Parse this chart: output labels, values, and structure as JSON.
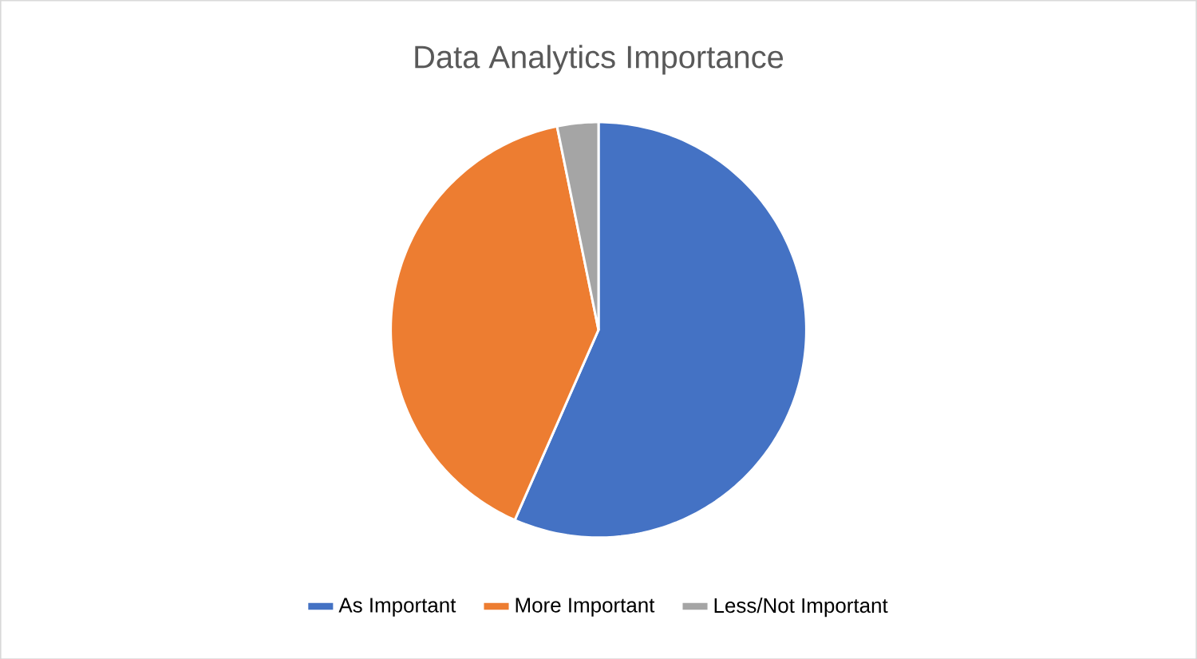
{
  "chart_data": {
    "type": "pie",
    "title": "Data Analytics Importance",
    "categories": [
      "As Important",
      "More Important",
      "Less/Not Important"
    ],
    "values": [
      56.6,
      40.2,
      3.2
    ],
    "colors": [
      "#4472c4",
      "#ed7d31",
      "#a5a5a5"
    ],
    "legend": "bottom"
  }
}
